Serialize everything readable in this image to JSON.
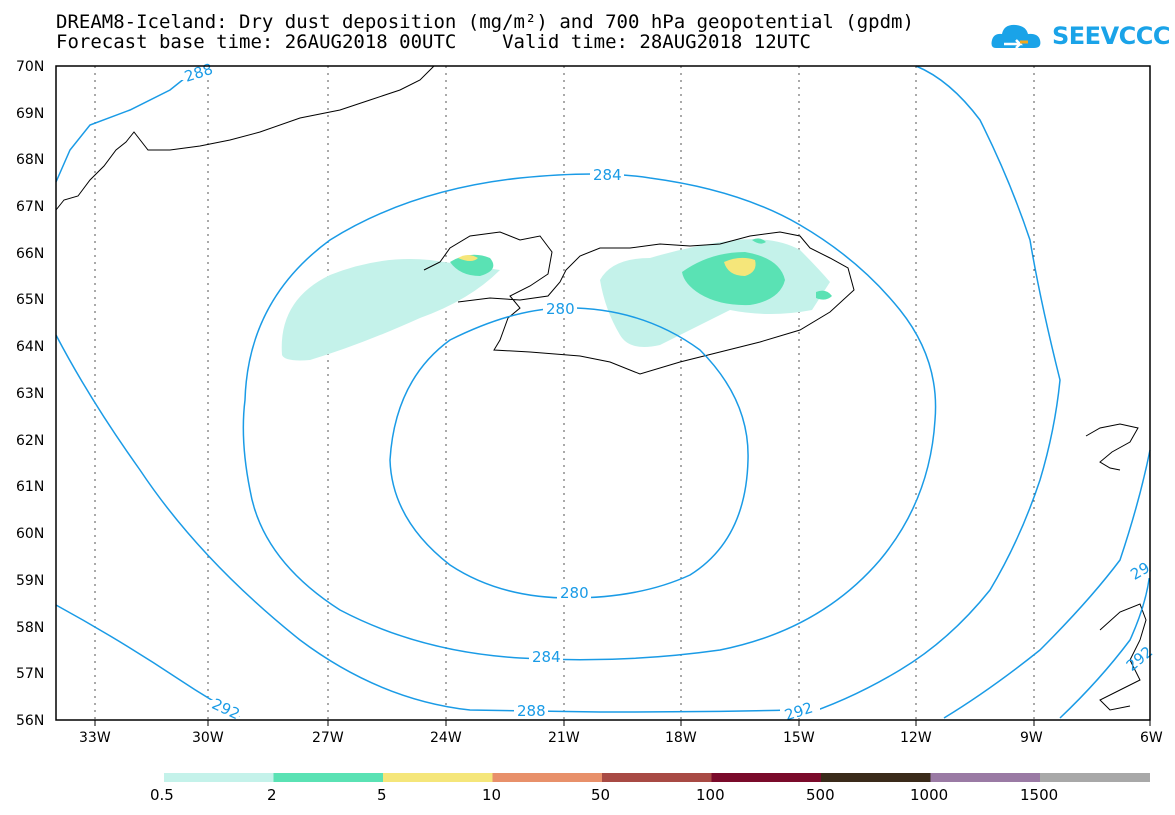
{
  "title_line1": "DREAM8-Iceland: Dry dust deposition (mg/m²) and 700 hPa geopotential (gpdm)",
  "title_line2": "Forecast base time: 26AUG2018 00UTC    Valid time: 28AUG2018 12UTC",
  "logo_text": "SEEVCCC",
  "logo_color": "#1aa3e8",
  "map": {
    "lat_labels": [
      "70N",
      "69N",
      "68N",
      "67N",
      "66N",
      "65N",
      "64N",
      "63N",
      "62N",
      "61N",
      "60N",
      "59N",
      "58N",
      "57N",
      "56N"
    ],
    "lon_labels": [
      "33W",
      "30W",
      "27W",
      "24W",
      "21W",
      "18W",
      "15W",
      "12W",
      "9W",
      "6W"
    ],
    "contour_color": "#1a9be6",
    "contour_labels": [
      "288",
      "284",
      "280",
      "280",
      "284",
      "288",
      "292",
      "292",
      "292",
      "29"
    ]
  },
  "legend": {
    "labels": [
      "0.5",
      "2",
      "5",
      "10",
      "50",
      "100",
      "500",
      "1000",
      "1500"
    ],
    "colors": [
      "#c4f2ea",
      "#5ae2b4",
      "#f5e67a",
      "#e8906a",
      "#a84a44",
      "#7a0a2a",
      "#3a2a1a",
      "#9a7aa4",
      "#a8a8a8"
    ]
  }
}
